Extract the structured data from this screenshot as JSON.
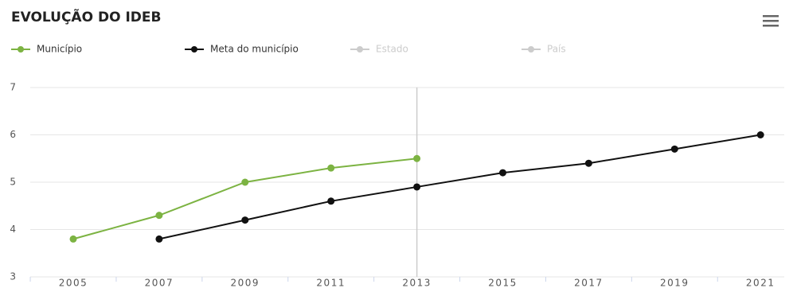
{
  "chart_data": {
    "type": "line",
    "title": "EVOLUÇÃO DO IDEB",
    "categories": [
      "2005",
      "2007",
      "2009",
      "2011",
      "2013",
      "2015",
      "2017",
      "2019",
      "2021"
    ],
    "series": [
      {
        "name": "Município",
        "color": "#7cb342",
        "visible": true,
        "values": [
          3.8,
          4.3,
          5.0,
          5.3,
          5.5,
          null,
          null,
          null,
          null
        ]
      },
      {
        "name": "Meta do município",
        "color": "#111111",
        "visible": true,
        "values": [
          null,
          3.8,
          4.2,
          4.6,
          4.9,
          5.2,
          5.4,
          5.7,
          6.0
        ]
      },
      {
        "name": "Estado",
        "color": "#cccccc",
        "visible": false,
        "values": [
          null,
          null,
          null,
          null,
          null,
          null,
          null,
          null,
          null
        ]
      },
      {
        "name": "País",
        "color": "#cccccc",
        "visible": false,
        "values": [
          null,
          null,
          null,
          null,
          null,
          null,
          null,
          null,
          null
        ]
      }
    ],
    "ylim": [
      3,
      7
    ],
    "yticks": [
      3,
      4,
      5,
      6,
      7
    ],
    "grid": true
  }
}
